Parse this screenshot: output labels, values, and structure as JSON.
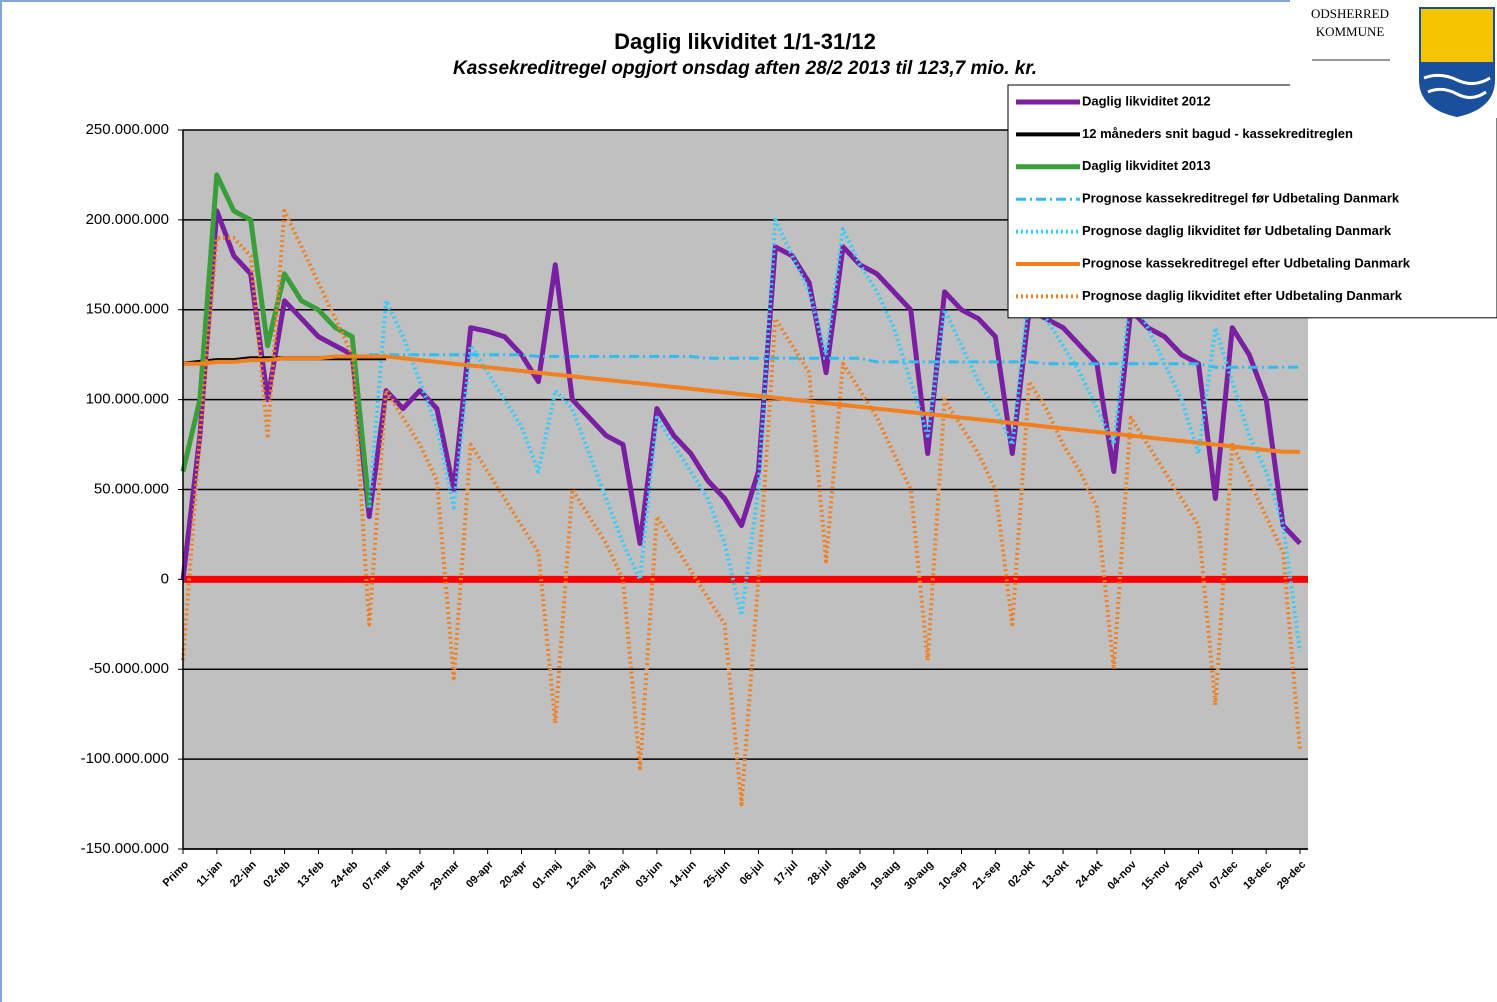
{
  "chart_data": {
    "type": "line",
    "title": "Daglig likviditet 1/1-31/12",
    "subtitle": "Kassekreditregel opgjort onsdag aften 28/2 2013 til 123,7 mio. kr.",
    "logo": {
      "line1": "ODSHERRED",
      "line2": "KOMMUNE"
    },
    "legend": "top-right",
    "grid": true,
    "ylim": [
      -150000000,
      250000000
    ],
    "yticks": [
      {
        "value": -150000000,
        "label": "-150.000.000"
      },
      {
        "value": -100000000,
        "label": "-100.000.000"
      },
      {
        "value": -50000000,
        "label": "-50.000.000"
      },
      0,
      {
        "value": 50000000,
        "label": "50.000.000"
      },
      {
        "value": 100000000,
        "label": "100.000.000"
      },
      {
        "value": 150000000,
        "label": "150.000.000"
      },
      {
        "value": 200000000,
        "label": "200.000.000"
      },
      {
        "value": 250000000,
        "label": "250.000.000"
      }
    ],
    "categories": [
      "Primo",
      null,
      "11-jan",
      null,
      "22-jan",
      null,
      "02-feb",
      null,
      "13-feb",
      null,
      "24-feb",
      null,
      "07-mar",
      null,
      "18-mar",
      null,
      "29-mar",
      null,
      "09-apr",
      null,
      "20-apr",
      null,
      "01-maj",
      null,
      "12-maj",
      null,
      "23-maj",
      null,
      "03-jun",
      null,
      "14-jun",
      null,
      "25-jun",
      null,
      "06-jul",
      null,
      "17-jul",
      null,
      "28-jul",
      null,
      "08-aug",
      null,
      "19-aug",
      null,
      "30-aug",
      null,
      "10-sep",
      null,
      "21-sep",
      null,
      "02-okt",
      null,
      "13-okt",
      null,
      "24-okt",
      null,
      "04-nov",
      null,
      "15-nov",
      null,
      "26-nov",
      null,
      "07-dec",
      null,
      "18-dec",
      null,
      "29-dec"
    ],
    "series": [
      {
        "name": "Daglig likviditet 2012",
        "color": "#7b1fa2",
        "style": "solid",
        "width": 5,
        "values": [
          0,
          80000000,
          205000000,
          180000000,
          170000000,
          100000000,
          155000000,
          145000000,
          135000000,
          130000000,
          125000000,
          35000000,
          105000000,
          95000000,
          105000000,
          95000000,
          50000000,
          140000000,
          138000000,
          135000000,
          125000000,
          110000000,
          175000000,
          100000000,
          90000000,
          80000000,
          75000000,
          20000000,
          95000000,
          80000000,
          70000000,
          55000000,
          45000000,
          30000000,
          60000000,
          185000000,
          180000000,
          165000000,
          115000000,
          185000000,
          175000000,
          170000000,
          160000000,
          150000000,
          70000000,
          160000000,
          150000000,
          145000000,
          135000000,
          70000000,
          150000000,
          145000000,
          140000000,
          130000000,
          120000000,
          60000000,
          150000000,
          140000000,
          135000000,
          125000000,
          120000000,
          45000000,
          140000000,
          125000000,
          100000000,
          30000000,
          20000000
        ]
      },
      {
        "name": "12 måneders snit bagud - kassekreditreglen",
        "color": "#000000",
        "style": "solid",
        "width": 4,
        "values": [
          120000000,
          121000000,
          122000000,
          122000000,
          123000000,
          123000000,
          123000000,
          123000000,
          123000000,
          123000000,
          123000000,
          123000000,
          123000000,
          null,
          null,
          null,
          null,
          null,
          null,
          null,
          null,
          null,
          null,
          null,
          null,
          null,
          null,
          null,
          null,
          null,
          null,
          null,
          null,
          null,
          null,
          null,
          null,
          null,
          null,
          null,
          null,
          null,
          null,
          null,
          null,
          null,
          null,
          null,
          null,
          null,
          null,
          null,
          null,
          null,
          null,
          null,
          null,
          null,
          null,
          null,
          null,
          null,
          null,
          null,
          null,
          null,
          null
        ]
      },
      {
        "name": "Daglig likviditet 2013",
        "color": "#3a9e3a",
        "style": "solid",
        "width": 5,
        "values": [
          60000000,
          100000000,
          225000000,
          205000000,
          200000000,
          130000000,
          170000000,
          155000000,
          150000000,
          140000000,
          135000000,
          40000000,
          null,
          null,
          null,
          null,
          null,
          null,
          null,
          null,
          null,
          null,
          null,
          null,
          null,
          null,
          null,
          null,
          null,
          null,
          null,
          null,
          null,
          null,
          null,
          null,
          null,
          null,
          null,
          null,
          null,
          null,
          null,
          null,
          null,
          null,
          null,
          null,
          null,
          null,
          null,
          null,
          null,
          null,
          null,
          null,
          null,
          null,
          null,
          null,
          null,
          null,
          null,
          null,
          null,
          null,
          null
        ]
      },
      {
        "name": "Prognose kassekreditregel før Udbetaling Danmark",
        "color": "#33bbee",
        "style": "dashdot",
        "width": 3,
        "values": [
          null,
          null,
          null,
          null,
          null,
          null,
          null,
          null,
          null,
          null,
          null,
          125000000,
          125000000,
          125000000,
          125000000,
          125000000,
          125000000,
          125000000,
          125000000,
          125000000,
          125000000,
          124000000,
          124000000,
          124000000,
          124000000,
          124000000,
          124000000,
          124000000,
          124000000,
          124000000,
          124000000,
          123000000,
          123000000,
          123000000,
          123000000,
          123000000,
          123000000,
          123000000,
          123000000,
          123000000,
          123000000,
          121000000,
          121000000,
          121000000,
          121000000,
          121000000,
          121000000,
          121000000,
          121000000,
          121000000,
          121000000,
          120000000,
          120000000,
          120000000,
          120000000,
          120000000,
          120000000,
          120000000,
          120000000,
          120000000,
          120000000,
          118000000,
          118000000,
          118000000,
          118000000,
          118000000,
          118000000
        ]
      },
      {
        "name": "Prognose daglig likviditet før Udbetaling Danmark",
        "color": "#33ccff",
        "style": "dotted",
        "width": 4,
        "values": [
          null,
          null,
          null,
          null,
          null,
          null,
          null,
          null,
          null,
          null,
          null,
          40000000,
          155000000,
          135000000,
          110000000,
          85000000,
          40000000,
          130000000,
          115000000,
          100000000,
          85000000,
          60000000,
          105000000,
          95000000,
          70000000,
          45000000,
          20000000,
          0,
          90000000,
          75000000,
          60000000,
          45000000,
          20000000,
          -20000000,
          50000000,
          200000000,
          180000000,
          160000000,
          125000000,
          195000000,
          175000000,
          160000000,
          140000000,
          110000000,
          80000000,
          150000000,
          130000000,
          110000000,
          95000000,
          75000000,
          160000000,
          145000000,
          130000000,
          115000000,
          95000000,
          75000000,
          160000000,
          140000000,
          120000000,
          100000000,
          70000000,
          140000000,
          110000000,
          80000000,
          60000000,
          30000000,
          -40000000
        ]
      },
      {
        "name": "Prognose kassekreditregel efter Udbetaling Danmark",
        "color": "#f08020",
        "style": "solid",
        "width": 4,
        "values": [
          120000000,
          120000000,
          121000000,
          121000000,
          122000000,
          122000000,
          123000000,
          123000000,
          123000000,
          124000000,
          124000000,
          124000000,
          124000000,
          123000000,
          122000000,
          121000000,
          120000000,
          119000000,
          118000000,
          117000000,
          116000000,
          115000000,
          114000000,
          113000000,
          112000000,
          111000000,
          110000000,
          109000000,
          108000000,
          107000000,
          106000000,
          105000000,
          104000000,
          103000000,
          102000000,
          101000000,
          100000000,
          99000000,
          98000000,
          97000000,
          96000000,
          95000000,
          94000000,
          93000000,
          92000000,
          91000000,
          90000000,
          89000000,
          88000000,
          87000000,
          86000000,
          85000000,
          84000000,
          83000000,
          82000000,
          81000000,
          80000000,
          79000000,
          78000000,
          77000000,
          76000000,
          75000000,
          74000000,
          73000000,
          72000000,
          71000000,
          71000000
        ]
      },
      {
        "name": "Prognose daglig likviditet efter Udbetaling Danmark",
        "color": "#f08020",
        "style": "dotted",
        "width": 4,
        "values": [
          -45000000,
          80000000,
          190000000,
          190000000,
          180000000,
          80000000,
          205000000,
          185000000,
          165000000,
          145000000,
          125000000,
          -25000000,
          105000000,
          90000000,
          75000000,
          55000000,
          -55000000,
          75000000,
          60000000,
          45000000,
          30000000,
          15000000,
          -80000000,
          50000000,
          35000000,
          20000000,
          0,
          -105000000,
          35000000,
          20000000,
          5000000,
          -10000000,
          -25000000,
          -125000000,
          0,
          145000000,
          130000000,
          115000000,
          10000000,
          120000000,
          105000000,
          90000000,
          70000000,
          50000000,
          -45000000,
          100000000,
          85000000,
          70000000,
          50000000,
          -25000000,
          110000000,
          95000000,
          75000000,
          60000000,
          40000000,
          -50000000,
          90000000,
          75000000,
          60000000,
          45000000,
          30000000,
          -70000000,
          75000000,
          55000000,
          35000000,
          15000000,
          -95000000
        ]
      }
    ]
  }
}
